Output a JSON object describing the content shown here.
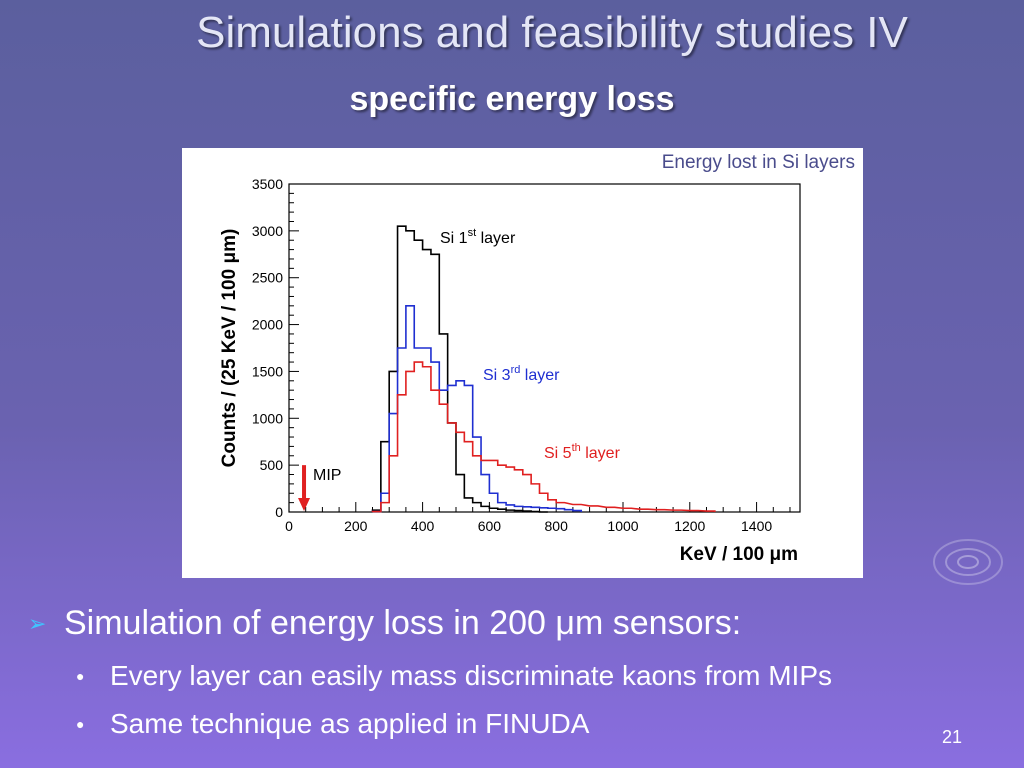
{
  "title": "Simulations and feasibility studies IV",
  "subtitle": "specific energy loss",
  "figure_caption": "Energy lost in Si layers",
  "bullets": {
    "main": "Simulation of energy loss in 200 μm sensors:",
    "sub": [
      "Every layer can easily mass discriminate kaons from MIPs",
      "Same technique as applied in FINUDA"
    ]
  },
  "page_number": "21",
  "icons": {
    "main_bullet": "arrow-bullet-icon",
    "sub_bullet": "dot-bullet-icon"
  },
  "colors": {
    "layer1": "#000000",
    "layer3": "#1f2fd1",
    "layer5": "#e02020",
    "mip_arrow": "#e02020"
  },
  "chart_data": {
    "type": "line",
    "xlabel": "KeV / 100 μm",
    "ylabel": "Counts / (25 KeV / 100 μm)",
    "xlim": [
      0,
      1530
    ],
    "ylim": [
      0,
      3500
    ],
    "x_ticks": [
      0,
      200,
      400,
      600,
      800,
      1000,
      1200,
      1400
    ],
    "y_ticks": [
      0,
      500,
      1000,
      1500,
      2000,
      2500,
      3000,
      3500
    ],
    "bin_width": 25,
    "series": [
      {
        "label_base": "Si 1",
        "label_sup": "st",
        "label_tail": " layer",
        "color": "#000000",
        "x": [
          250,
          275,
          300,
          325,
          350,
          375,
          400,
          425,
          450,
          475,
          500,
          525,
          550,
          575,
          600,
          625,
          650,
          675,
          700,
          725,
          750
        ],
        "values": [
          20,
          750,
          1500,
          3050,
          3000,
          2900,
          2800,
          2750,
          1900,
          950,
          400,
          150,
          100,
          60,
          40,
          30,
          20,
          15,
          10,
          5,
          0
        ]
      },
      {
        "label_base": "Si 3",
        "label_sup": "rd",
        "label_tail": " layer",
        "color": "#1f2fd1",
        "x": [
          250,
          275,
          300,
          325,
          350,
          375,
          400,
          425,
          450,
          475,
          500,
          525,
          550,
          575,
          600,
          625,
          650,
          675,
          700,
          725,
          750,
          775,
          800,
          825,
          850
        ],
        "values": [
          5,
          200,
          1050,
          1750,
          2200,
          1750,
          1750,
          1600,
          1300,
          1350,
          1400,
          1350,
          800,
          400,
          200,
          100,
          75,
          60,
          55,
          50,
          45,
          40,
          35,
          25,
          15
        ]
      },
      {
        "label_base": "Si 5",
        "label_sup": "th",
        "label_tail": " layer",
        "color": "#e02020",
        "x": [
          250,
          275,
          300,
          325,
          350,
          375,
          400,
          425,
          450,
          475,
          500,
          525,
          550,
          575,
          600,
          625,
          650,
          675,
          700,
          725,
          750,
          775,
          800,
          850,
          900,
          950,
          1000,
          1050,
          1100,
          1150,
          1200,
          1250
        ],
        "values": [
          5,
          100,
          600,
          1250,
          1500,
          1600,
          1550,
          1300,
          1150,
          950,
          850,
          750,
          600,
          550,
          550,
          500,
          480,
          450,
          400,
          300,
          200,
          130,
          100,
          80,
          65,
          50,
          40,
          30,
          25,
          20,
          15,
          10
        ]
      }
    ],
    "annotations": [
      {
        "text": "MIP",
        "x": 45
      }
    ]
  }
}
